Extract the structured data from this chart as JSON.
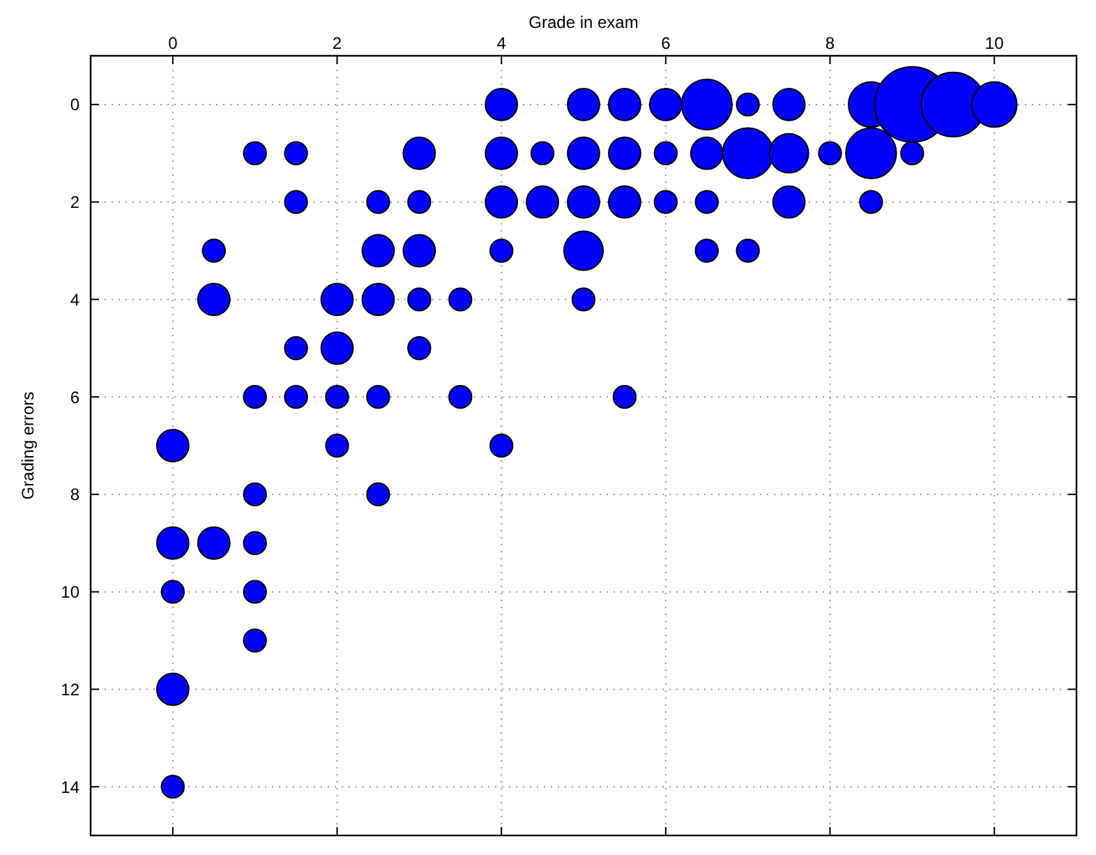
{
  "chart_data": {
    "type": "bubble",
    "xlabel": "Grade in exam",
    "ylabel": "Grading errors",
    "xlim": [
      -1,
      11
    ],
    "xticks": [
      0,
      2,
      4,
      6,
      8,
      10
    ],
    "ylim": [
      15,
      -1
    ],
    "yticks": [
      0,
      2,
      4,
      6,
      8,
      10,
      12,
      14
    ],
    "grid": true,
    "marker": "circle",
    "series": [
      {
        "color": "#0000ff",
        "x": [
          4,
          5,
          5.5,
          6,
          6.5,
          7,
          7.5,
          8.5,
          9,
          9.5,
          10,
          1,
          1.5,
          3,
          4,
          4.5,
          5,
          5.5,
          6,
          6.5,
          7,
          7.5,
          8,
          8.5,
          9,
          1.5,
          2.5,
          3,
          4,
          4.5,
          5,
          5.5,
          6,
          6.5,
          7.5,
          8.5,
          0.5,
          2.5,
          3,
          4,
          5,
          6.5,
          7,
          0.5,
          2,
          2.5,
          3,
          3.5,
          5,
          1.5,
          2,
          3,
          1,
          1.5,
          2,
          2.5,
          3.5,
          5.5,
          0,
          2,
          4,
          1,
          2.5,
          0,
          0.5,
          1,
          0,
          1,
          1,
          0,
          0
        ],
        "values": [
          0,
          0,
          0,
          0,
          0,
          0,
          0,
          0,
          0,
          0,
          0,
          1,
          1,
          1,
          1,
          1,
          1,
          1,
          1,
          1,
          1,
          1,
          1,
          1,
          1,
          2,
          2,
          2,
          2,
          2,
          2,
          2,
          2,
          2,
          2,
          2,
          3,
          3,
          3,
          3,
          3,
          3,
          3,
          4,
          4,
          4,
          4,
          4,
          4,
          5,
          5,
          5,
          6,
          6,
          6,
          6,
          6,
          6,
          7,
          7,
          7,
          8,
          8,
          9,
          9,
          9,
          10,
          10,
          11,
          12,
          14
        ],
        "sizes": [
          0.18,
          0.18,
          0.18,
          0.18,
          0.45,
          0.09,
          0.18,
          0.36,
          1,
          0.73,
          0.36,
          0.09,
          0.09,
          0.18,
          0.18,
          0.09,
          0.18,
          0.18,
          0.09,
          0.18,
          0.45,
          0.27,
          0.09,
          0.45,
          0.09,
          0.09,
          0.09,
          0.09,
          0.18,
          0.18,
          0.18,
          0.18,
          0.09,
          0.09,
          0.18,
          0.09,
          0.09,
          0.18,
          0.18,
          0.09,
          0.27,
          0.09,
          0.09,
          0.18,
          0.18,
          0.18,
          0.09,
          0.09,
          0.09,
          0.09,
          0.18,
          0.09,
          0.09,
          0.09,
          0.09,
          0.09,
          0.09,
          0.09,
          0.18,
          0.09,
          0.09,
          0.09,
          0.09,
          0.18,
          0.18,
          0.09,
          0.09,
          0.09,
          0.09,
          0.18,
          0.09
        ]
      }
    ]
  }
}
